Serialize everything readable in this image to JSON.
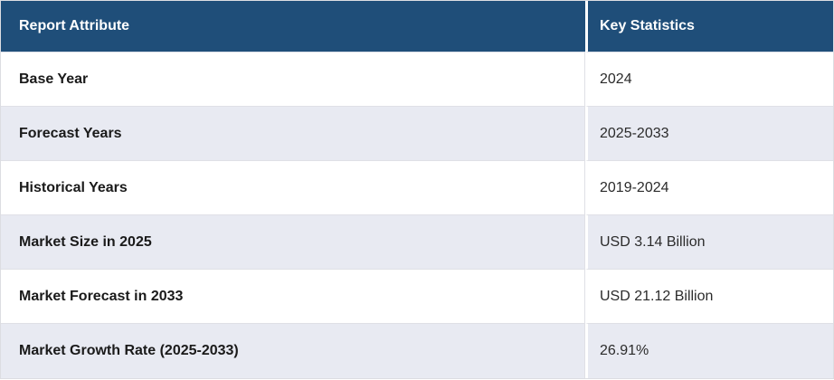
{
  "table": {
    "columns": [
      {
        "label": "Report Attribute"
      },
      {
        "label": "Key Statistics"
      }
    ],
    "rows": [
      {
        "attribute": "Base Year",
        "value": "2024"
      },
      {
        "attribute": "Forecast Years",
        "value": "2025-2033"
      },
      {
        "attribute": "Historical Years",
        "value": "2019-2024"
      },
      {
        "attribute": "Market Size in 2025",
        "value": "USD 3.14 Billion"
      },
      {
        "attribute": "Market Forecast in 2033",
        "value": "USD 21.12 Billion"
      },
      {
        "attribute": "Market Growth Rate (2025-2033)",
        "value": "26.91%"
      }
    ]
  },
  "chart_data": {
    "type": "table",
    "columns": [
      "Report Attribute",
      "Key Statistics"
    ],
    "rows": [
      [
        "Base Year",
        "2024"
      ],
      [
        "Forecast Years",
        "2025-2033"
      ],
      [
        "Historical Years",
        "2019-2024"
      ],
      [
        "Market Size in 2025",
        "USD 3.14 Billion"
      ],
      [
        "Market Forecast in 2033",
        "USD 21.12 Billion"
      ],
      [
        "Market Growth Rate (2025-2033)",
        "26.91%"
      ]
    ]
  },
  "colors": {
    "header_bg": "#1f4e79",
    "header_text": "#ffffff",
    "row_bg": "#ffffff",
    "row_alt_bg": "#e8eaf2",
    "border": "#dfe0e6",
    "label_text": "#1a1a1a",
    "value_text": "#2b2b2b"
  }
}
